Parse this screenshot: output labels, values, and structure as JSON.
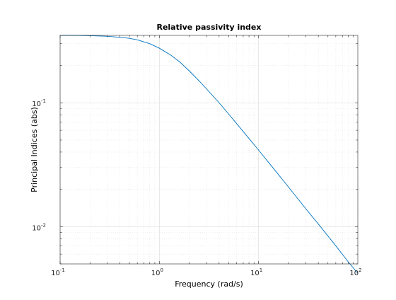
{
  "chart_data": {
    "type": "line",
    "title": "Relative passivity index",
    "xlabel": "Frequency (rad/s)",
    "ylabel": "Principal Indices (abs)",
    "xscale": "log",
    "yscale": "log",
    "xlim": [
      0.1,
      100
    ],
    "ylim": [
      0.005,
      0.35
    ],
    "grid": true,
    "minor_grid": true,
    "x_ticks": [
      {
        "value": 0.1,
        "base": "10",
        "exp": "-1"
      },
      {
        "value": 1,
        "base": "10",
        "exp": "0"
      },
      {
        "value": 10,
        "base": "10",
        "exp": "1"
      },
      {
        "value": 100,
        "base": "10",
        "exp": "2"
      }
    ],
    "y_ticks": [
      {
        "value": 0.01,
        "base": "10",
        "exp": "-2"
      },
      {
        "value": 0.1,
        "base": "10",
        "exp": "-1"
      }
    ],
    "series": [
      {
        "color": "#0072bd",
        "x": [
          0.1,
          0.15,
          0.2,
          0.3,
          0.4,
          0.5,
          0.6,
          0.8,
          1.0,
          1.3,
          1.6,
          2.0,
          2.5,
          3.0,
          4.0,
          5.0,
          6.0,
          8.0,
          10,
          15,
          20,
          30,
          40,
          50,
          60,
          80,
          100
        ],
        "y": [
          0.35,
          0.35,
          0.348,
          0.344,
          0.338,
          0.331,
          0.322,
          0.3,
          0.276,
          0.243,
          0.214,
          0.181,
          0.151,
          0.129,
          0.1,
          0.081,
          0.068,
          0.0515,
          0.0415,
          0.0278,
          0.0209,
          0.0139,
          0.0105,
          0.0084,
          0.007,
          0.0052,
          0.0042
        ]
      }
    ]
  }
}
